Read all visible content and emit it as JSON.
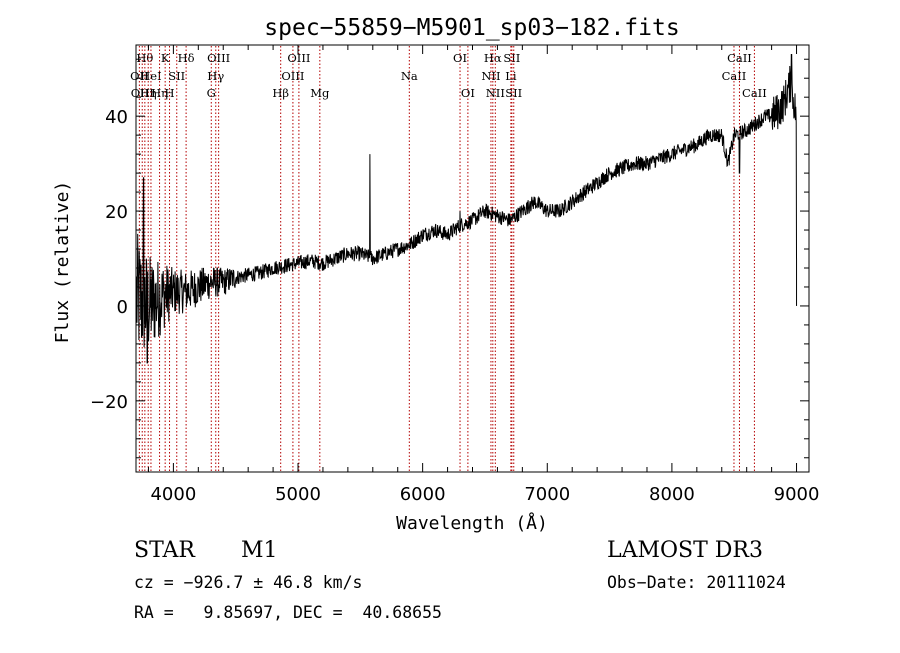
{
  "chart_data": {
    "type": "line",
    "title": "spec−55859−M5901_sp03−182.fits",
    "xlabel": "Wavelength (Å)",
    "ylabel": "Flux (relative)",
    "xlim": [
      3700,
      9100
    ],
    "ylim": [
      -35,
      55
    ],
    "x_ticks": [
      {
        "value": 4000,
        "label": "4000"
      },
      {
        "value": 5000,
        "label": "5000"
      },
      {
        "value": 6000,
        "label": "6000"
      },
      {
        "value": 7000,
        "label": "7000"
      },
      {
        "value": 8000,
        "label": "8000"
      },
      {
        "value": 9000,
        "label": "9000"
      }
    ],
    "y_ticks": [
      {
        "value": -20,
        "label": "−20"
      },
      {
        "value": 0,
        "label": "0"
      },
      {
        "value": 20,
        "label": "20"
      },
      {
        "value": 40,
        "label": "40"
      }
    ],
    "x_minor_step": 200,
    "y_minor_step": 4,
    "series": [
      {
        "name": "flux",
        "color": "#000000",
        "anchors": [
          [
            3700,
            2
          ],
          [
            3800,
            0
          ],
          [
            3900,
            2
          ],
          [
            4000,
            3
          ],
          [
            4100,
            3
          ],
          [
            4200,
            4
          ],
          [
            4300,
            5
          ],
          [
            4400,
            5
          ],
          [
            4500,
            6
          ],
          [
            4600,
            6.5
          ],
          [
            4700,
            7
          ],
          [
            4800,
            8
          ],
          [
            4900,
            8.5
          ],
          [
            5000,
            9
          ],
          [
            5100,
            9.5
          ],
          [
            5200,
            9
          ],
          [
            5300,
            10
          ],
          [
            5400,
            11
          ],
          [
            5500,
            11
          ],
          [
            5600,
            10
          ],
          [
            5700,
            11
          ],
          [
            5800,
            12
          ],
          [
            5900,
            13
          ],
          [
            6000,
            15
          ],
          [
            6100,
            16
          ],
          [
            6200,
            15
          ],
          [
            6300,
            17
          ],
          [
            6400,
            18
          ],
          [
            6500,
            20
          ],
          [
            6600,
            19
          ],
          [
            6700,
            18
          ],
          [
            6800,
            20
          ],
          [
            6900,
            22
          ],
          [
            7000,
            20
          ],
          [
            7100,
            20
          ],
          [
            7200,
            22
          ],
          [
            7300,
            24
          ],
          [
            7400,
            26
          ],
          [
            7500,
            28
          ],
          [
            7600,
            29
          ],
          [
            7700,
            30
          ],
          [
            7800,
            30
          ],
          [
            7900,
            31
          ],
          [
            8000,
            32
          ],
          [
            8100,
            33
          ],
          [
            8200,
            34
          ],
          [
            8300,
            36
          ],
          [
            8400,
            36
          ],
          [
            8450,
            30
          ],
          [
            8500,
            36
          ],
          [
            8600,
            37
          ],
          [
            8700,
            39
          ],
          [
            8750,
            40
          ],
          [
            8800,
            40
          ],
          [
            8850,
            41
          ],
          [
            8900,
            43
          ],
          [
            8950,
            47
          ],
          [
            9000,
            40
          ]
        ],
        "features": [
          {
            "x": 3760,
            "y": 27
          },
          {
            "x": 3790,
            "y": -12
          },
          {
            "x": 5577,
            "y": 32
          },
          {
            "x": 6300,
            "y": 20
          },
          {
            "x": 6863,
            "y": 22
          },
          {
            "x": 8542,
            "y": 28
          },
          {
            "x": 8960,
            "y": 53
          },
          {
            "x": 9000,
            "y": 10
          }
        ]
      }
    ],
    "lines": [
      {
        "x": 3727,
        "label": "OII",
        "row": 1
      },
      {
        "x": 3750,
        "label": "OIII",
        "row": 2
      },
      {
        "x": 3771,
        "label": "Hθ",
        "row": 0
      },
      {
        "x": 3798,
        "label": "Hη",
        "row": 2
      },
      {
        "x": 3820,
        "label": "HeI",
        "row": 1
      },
      {
        "x": 3889,
        "label": "Hη",
        "row": 2
      },
      {
        "x": 3934,
        "label": "K",
        "row": 0
      },
      {
        "x": 3969,
        "label": "H",
        "row": 2
      },
      {
        "x": 4027,
        "label": "SII",
        "row": 1
      },
      {
        "x": 4102,
        "label": "Hδ",
        "row": 0
      },
      {
        "x": 4304,
        "label": "G",
        "row": 2
      },
      {
        "x": 4340,
        "label": "Hγ",
        "row": 1
      },
      {
        "x": 4363,
        "label": "OIII",
        "row": 0
      },
      {
        "x": 4861,
        "label": "Hβ",
        "row": 2
      },
      {
        "x": 4959,
        "label": "OIII",
        "row": 1
      },
      {
        "x": 5007,
        "label": "OIII",
        "row": 0
      },
      {
        "x": 5175,
        "label": "Mg",
        "row": 2
      },
      {
        "x": 5893,
        "label": "Na",
        "row": 1
      },
      {
        "x": 6300,
        "label": "OI",
        "row": 0
      },
      {
        "x": 6363,
        "label": "OI",
        "row": 2
      },
      {
        "x": 6548,
        "label": "NII",
        "row": 1
      },
      {
        "x": 6563,
        "label": "Hα",
        "row": 0
      },
      {
        "x": 6583,
        "label": "NII",
        "row": 2
      },
      {
        "x": 6708,
        "label": "Li",
        "row": 1
      },
      {
        "x": 6716,
        "label": "SII",
        "row": 0
      },
      {
        "x": 6731,
        "label": "SII",
        "row": 2
      },
      {
        "x": 8498,
        "label": "CaII",
        "row": 1
      },
      {
        "x": 8542,
        "label": "CaII",
        "row": 0
      },
      {
        "x": 8662,
        "label": "CaII",
        "row": 2
      }
    ],
    "line_color": "#b40000",
    "grid": false,
    "legend": "none"
  },
  "info": {
    "object_class": "STAR",
    "subclass": "M1",
    "survey": "LAMOST DR3",
    "redshift": "cz = −926.7 ± 46.8 km/s",
    "obs_date": "Obs−Date: 20111024",
    "coords": "RA =   9.85697, DEC =  40.68655"
  }
}
